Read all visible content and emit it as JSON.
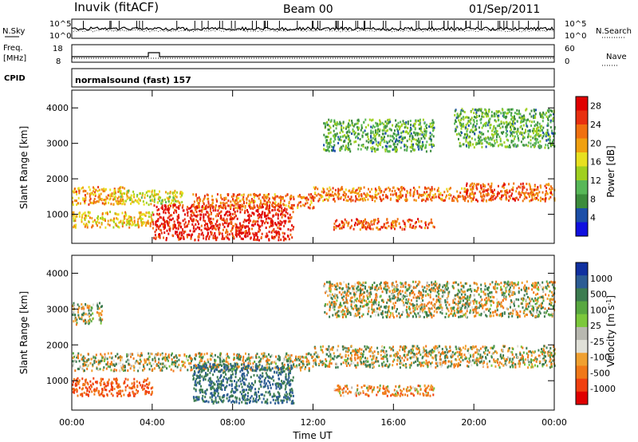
{
  "header": {
    "station": "Inuvik (fitACF)",
    "beam": "Beam 00",
    "date": "01/Sep/2011"
  },
  "noise_panel": {
    "left_label": "N.Sky",
    "right_label": "N.Search",
    "left_ticks": [
      "10^5",
      "10^0"
    ],
    "right_ticks": [
      "10^5",
      "10^0"
    ]
  },
  "freq_panel": {
    "left_label_1": "Freq.",
    "left_label_2": "[MHz]",
    "right_label": "Nave",
    "left_ticks": [
      "18",
      "8"
    ],
    "right_ticks": [
      "60",
      "0"
    ]
  },
  "cpid": {
    "label": "CPID",
    "value": "normalsound (fast) 157"
  },
  "colors": {
    "power_scale": [
      "#1010e0",
      "#1c4fa8",
      "#3c8c3c",
      "#58b858",
      "#a0d020",
      "#e8e020",
      "#f0a010",
      "#f07010",
      "#e83010",
      "#e00000"
    ],
    "velocity_scale": [
      "#1030a0",
      "#2c5c94",
      "#3c7c50",
      "#58a840",
      "#7cc83c",
      "#b8b8b0",
      "#e0e0d8",
      "#f0a030",
      "#f07818",
      "#f04010",
      "#e00000"
    ]
  },
  "chart_data": [
    {
      "type": "heatmap",
      "title": "",
      "xlabel": "Time UT",
      "ylabel": "Slant Range [km]",
      "x_tick_labels": [
        "00:00",
        "04:00",
        "08:00",
        "12:00",
        "16:00",
        "20:00",
        "00:00"
      ],
      "y_tick_labels": [
        "1000",
        "2000",
        "3000",
        "4000"
      ],
      "xlim": [
        0,
        24
      ],
      "ylim": [
        180,
        4500
      ],
      "colorbar": {
        "label": "Power [dB]",
        "ticks": [
          "4",
          "8",
          "12",
          "16",
          "20",
          "24",
          "28"
        ],
        "range": [
          0,
          30
        ]
      },
      "echo_bands": [
        {
          "start_hr": 0.0,
          "end_hr": 2.6,
          "range_km_low": 1300,
          "range_km_high": 1800,
          "power_db": 20
        },
        {
          "start_hr": 0.0,
          "end_hr": 4.0,
          "range_km_low": 650,
          "range_km_high": 1100,
          "power_db": 18
        },
        {
          "start_hr": 2.0,
          "end_hr": 5.5,
          "range_km_low": 1300,
          "range_km_high": 1700,
          "power_db": 16
        },
        {
          "start_hr": 4.0,
          "end_hr": 11.0,
          "range_km_low": 300,
          "range_km_high": 1300,
          "power_db": 27
        },
        {
          "start_hr": 6.0,
          "end_hr": 12.0,
          "range_km_low": 1200,
          "range_km_high": 1600,
          "power_db": 22
        },
        {
          "start_hr": 12.0,
          "end_hr": 20.0,
          "range_km_low": 1400,
          "range_km_high": 1800,
          "power_db": 22
        },
        {
          "start_hr": 13.0,
          "end_hr": 18.0,
          "range_km_low": 600,
          "range_km_high": 900,
          "power_db": 24
        },
        {
          "start_hr": 19.5,
          "end_hr": 24.0,
          "range_km_low": 1400,
          "range_km_high": 1900,
          "power_db": 24
        },
        {
          "start_hr": 12.5,
          "end_hr": 18.0,
          "range_km_low": 2800,
          "range_km_high": 3700,
          "power_db": 10
        },
        {
          "start_hr": 19.0,
          "end_hr": 24.0,
          "range_km_low": 2900,
          "range_km_high": 4000,
          "power_db": 10
        }
      ]
    },
    {
      "type": "heatmap",
      "title": "",
      "xlabel": "Time UT",
      "ylabel": "Slant Range [km]",
      "x_tick_labels": [
        "00:00",
        "04:00",
        "08:00",
        "12:00",
        "16:00",
        "20:00",
        "00:00"
      ],
      "y_tick_labels": [
        "1000",
        "2000",
        "3000",
        "4000"
      ],
      "xlim": [
        0,
        24
      ],
      "ylim": [
        180,
        4500
      ],
      "colorbar": {
        "label": "Velocity [m s^-1]",
        "ticks": [
          "1000",
          "500",
          "100",
          "25",
          "-25",
          "-100",
          "-500",
          "-1000"
        ]
      },
      "echo_bands": [
        {
          "start_hr": 0.0,
          "end_hr": 4.0,
          "range_km_low": 600,
          "range_km_high": 1100,
          "velocity": -300
        },
        {
          "start_hr": 0.0,
          "end_hr": 12.0,
          "range_km_low": 1300,
          "range_km_high": 1800,
          "velocity": 0
        },
        {
          "start_hr": 6.0,
          "end_hr": 11.0,
          "range_km_low": 400,
          "range_km_high": 1500,
          "velocity": 300
        },
        {
          "start_hr": 12.0,
          "end_hr": 24.0,
          "range_km_low": 1400,
          "range_km_high": 2000,
          "velocity": 0
        },
        {
          "start_hr": 13.0,
          "end_hr": 18.0,
          "range_km_low": 600,
          "range_km_high": 900,
          "velocity": -150
        },
        {
          "start_hr": 0.0,
          "end_hr": 1.5,
          "range_km_low": 2600,
          "range_km_high": 3200,
          "velocity": 0
        },
        {
          "start_hr": 12.5,
          "end_hr": 24.0,
          "range_km_low": 2800,
          "range_km_high": 3800,
          "velocity": 0
        }
      ]
    }
  ]
}
